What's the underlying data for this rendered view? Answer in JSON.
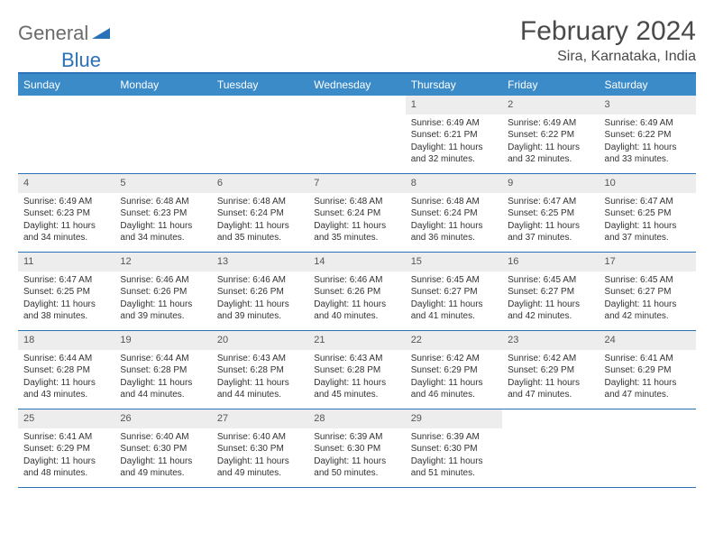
{
  "logo": {
    "part1": "General",
    "part2": "Blue"
  },
  "title": "February 2024",
  "location": "Sira, Karnataka, India",
  "colors": {
    "header_bg": "#3b8bc9",
    "border": "#2a71b8",
    "daynum_bg": "#ededed",
    "text": "#333333",
    "logo_gray": "#6b6b6b",
    "logo_blue": "#2a71b8"
  },
  "fonts": {
    "title_size": 30,
    "location_size": 16,
    "header_size": 12,
    "body_size": 10
  },
  "weekdays": [
    "Sunday",
    "Monday",
    "Tuesday",
    "Wednesday",
    "Thursday",
    "Friday",
    "Saturday"
  ],
  "weeks": [
    [
      {
        "empty": true
      },
      {
        "empty": true
      },
      {
        "empty": true
      },
      {
        "empty": true
      },
      {
        "num": "1",
        "sunrise": "Sunrise: 6:49 AM",
        "sunset": "Sunset: 6:21 PM",
        "daylight": "Daylight: 11 hours and 32 minutes."
      },
      {
        "num": "2",
        "sunrise": "Sunrise: 6:49 AM",
        "sunset": "Sunset: 6:22 PM",
        "daylight": "Daylight: 11 hours and 32 minutes."
      },
      {
        "num": "3",
        "sunrise": "Sunrise: 6:49 AM",
        "sunset": "Sunset: 6:22 PM",
        "daylight": "Daylight: 11 hours and 33 minutes."
      }
    ],
    [
      {
        "num": "4",
        "sunrise": "Sunrise: 6:49 AM",
        "sunset": "Sunset: 6:23 PM",
        "daylight": "Daylight: 11 hours and 34 minutes."
      },
      {
        "num": "5",
        "sunrise": "Sunrise: 6:48 AM",
        "sunset": "Sunset: 6:23 PM",
        "daylight": "Daylight: 11 hours and 34 minutes."
      },
      {
        "num": "6",
        "sunrise": "Sunrise: 6:48 AM",
        "sunset": "Sunset: 6:24 PM",
        "daylight": "Daylight: 11 hours and 35 minutes."
      },
      {
        "num": "7",
        "sunrise": "Sunrise: 6:48 AM",
        "sunset": "Sunset: 6:24 PM",
        "daylight": "Daylight: 11 hours and 35 minutes."
      },
      {
        "num": "8",
        "sunrise": "Sunrise: 6:48 AM",
        "sunset": "Sunset: 6:24 PM",
        "daylight": "Daylight: 11 hours and 36 minutes."
      },
      {
        "num": "9",
        "sunrise": "Sunrise: 6:47 AM",
        "sunset": "Sunset: 6:25 PM",
        "daylight": "Daylight: 11 hours and 37 minutes."
      },
      {
        "num": "10",
        "sunrise": "Sunrise: 6:47 AM",
        "sunset": "Sunset: 6:25 PM",
        "daylight": "Daylight: 11 hours and 37 minutes."
      }
    ],
    [
      {
        "num": "11",
        "sunrise": "Sunrise: 6:47 AM",
        "sunset": "Sunset: 6:25 PM",
        "daylight": "Daylight: 11 hours and 38 minutes."
      },
      {
        "num": "12",
        "sunrise": "Sunrise: 6:46 AM",
        "sunset": "Sunset: 6:26 PM",
        "daylight": "Daylight: 11 hours and 39 minutes."
      },
      {
        "num": "13",
        "sunrise": "Sunrise: 6:46 AM",
        "sunset": "Sunset: 6:26 PM",
        "daylight": "Daylight: 11 hours and 39 minutes."
      },
      {
        "num": "14",
        "sunrise": "Sunrise: 6:46 AM",
        "sunset": "Sunset: 6:26 PM",
        "daylight": "Daylight: 11 hours and 40 minutes."
      },
      {
        "num": "15",
        "sunrise": "Sunrise: 6:45 AM",
        "sunset": "Sunset: 6:27 PM",
        "daylight": "Daylight: 11 hours and 41 minutes."
      },
      {
        "num": "16",
        "sunrise": "Sunrise: 6:45 AM",
        "sunset": "Sunset: 6:27 PM",
        "daylight": "Daylight: 11 hours and 42 minutes."
      },
      {
        "num": "17",
        "sunrise": "Sunrise: 6:45 AM",
        "sunset": "Sunset: 6:27 PM",
        "daylight": "Daylight: 11 hours and 42 minutes."
      }
    ],
    [
      {
        "num": "18",
        "sunrise": "Sunrise: 6:44 AM",
        "sunset": "Sunset: 6:28 PM",
        "daylight": "Daylight: 11 hours and 43 minutes."
      },
      {
        "num": "19",
        "sunrise": "Sunrise: 6:44 AM",
        "sunset": "Sunset: 6:28 PM",
        "daylight": "Daylight: 11 hours and 44 minutes."
      },
      {
        "num": "20",
        "sunrise": "Sunrise: 6:43 AM",
        "sunset": "Sunset: 6:28 PM",
        "daylight": "Daylight: 11 hours and 44 minutes."
      },
      {
        "num": "21",
        "sunrise": "Sunrise: 6:43 AM",
        "sunset": "Sunset: 6:28 PM",
        "daylight": "Daylight: 11 hours and 45 minutes."
      },
      {
        "num": "22",
        "sunrise": "Sunrise: 6:42 AM",
        "sunset": "Sunset: 6:29 PM",
        "daylight": "Daylight: 11 hours and 46 minutes."
      },
      {
        "num": "23",
        "sunrise": "Sunrise: 6:42 AM",
        "sunset": "Sunset: 6:29 PM",
        "daylight": "Daylight: 11 hours and 47 minutes."
      },
      {
        "num": "24",
        "sunrise": "Sunrise: 6:41 AM",
        "sunset": "Sunset: 6:29 PM",
        "daylight": "Daylight: 11 hours and 47 minutes."
      }
    ],
    [
      {
        "num": "25",
        "sunrise": "Sunrise: 6:41 AM",
        "sunset": "Sunset: 6:29 PM",
        "daylight": "Daylight: 11 hours and 48 minutes."
      },
      {
        "num": "26",
        "sunrise": "Sunrise: 6:40 AM",
        "sunset": "Sunset: 6:30 PM",
        "daylight": "Daylight: 11 hours and 49 minutes."
      },
      {
        "num": "27",
        "sunrise": "Sunrise: 6:40 AM",
        "sunset": "Sunset: 6:30 PM",
        "daylight": "Daylight: 11 hours and 49 minutes."
      },
      {
        "num": "28",
        "sunrise": "Sunrise: 6:39 AM",
        "sunset": "Sunset: 6:30 PM",
        "daylight": "Daylight: 11 hours and 50 minutes."
      },
      {
        "num": "29",
        "sunrise": "Sunrise: 6:39 AM",
        "sunset": "Sunset: 6:30 PM",
        "daylight": "Daylight: 11 hours and 51 minutes."
      },
      {
        "empty": true
      },
      {
        "empty": true
      }
    ]
  ]
}
